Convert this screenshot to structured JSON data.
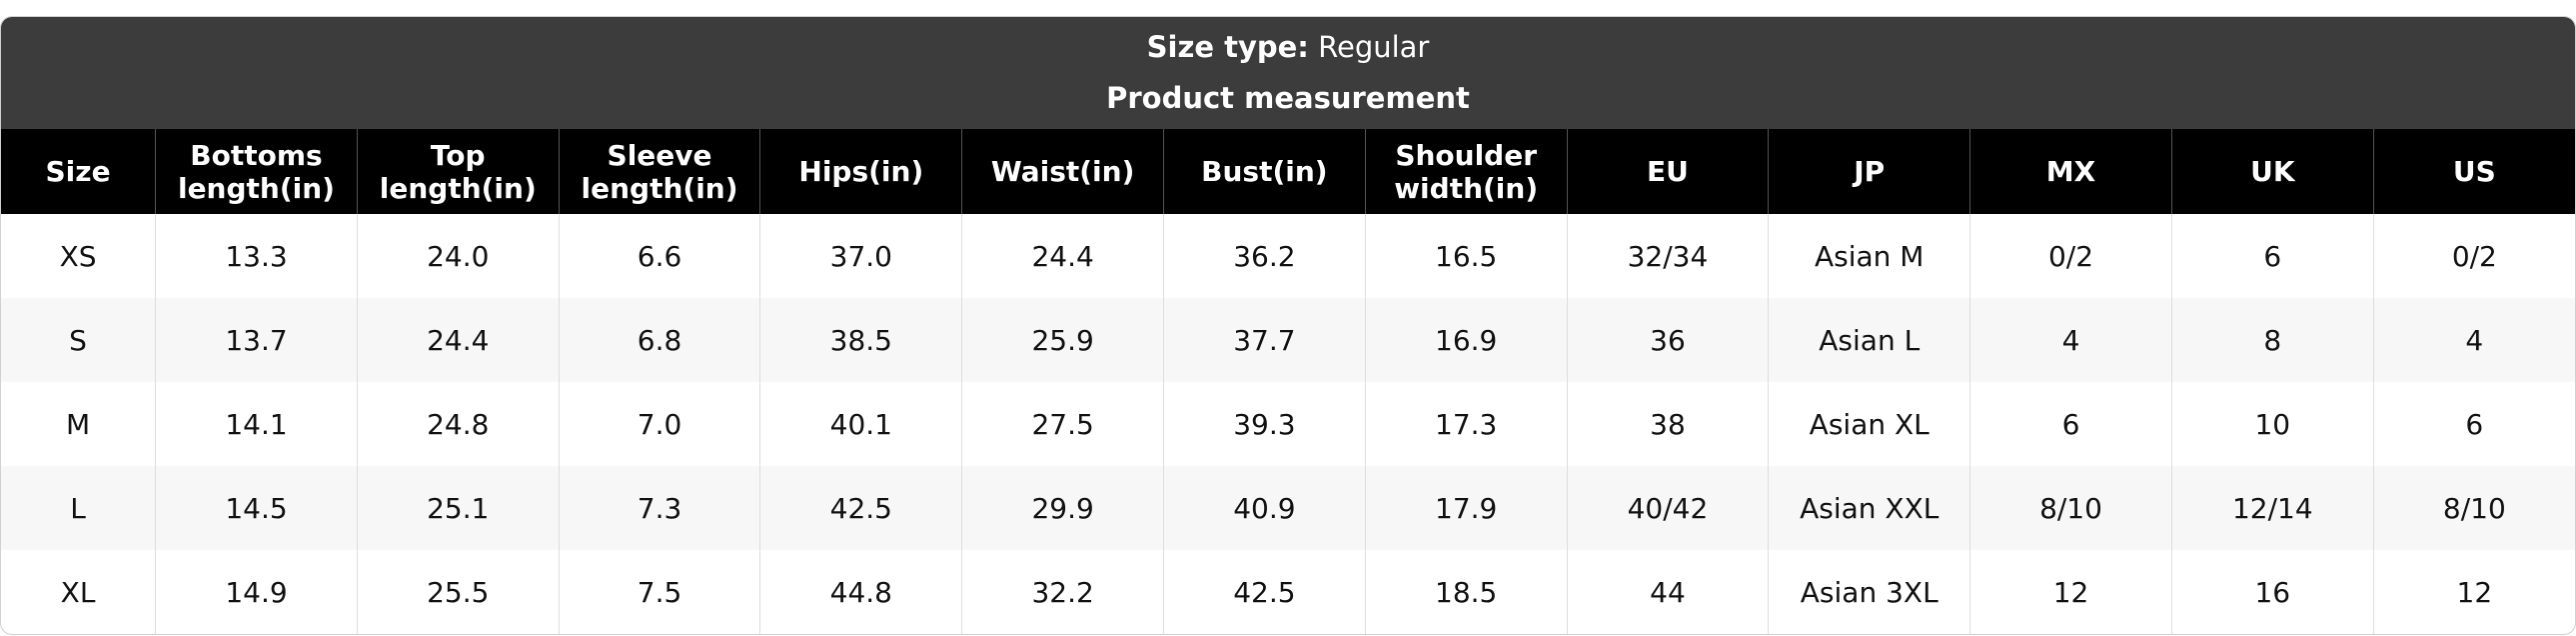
{
  "header": {
    "size_type_label": "Size type:",
    "size_type_value": "Regular",
    "subtitle": "Product measurement"
  },
  "table": {
    "columns": [
      "Size",
      "Bottoms length(in)",
      "Top length(in)",
      "Sleeve length(in)",
      "Hips(in)",
      "Waist(in)",
      "Bust(in)",
      "Shoulder width(in)",
      "EU",
      "JP",
      "MX",
      "UK",
      "US"
    ],
    "rows": [
      [
        "XS",
        "13.3",
        "24.0",
        "6.6",
        "37.0",
        "24.4",
        "36.2",
        "16.5",
        "32/34",
        "Asian M",
        "0/2",
        "6",
        "0/2"
      ],
      [
        "S",
        "13.7",
        "24.4",
        "6.8",
        "38.5",
        "25.9",
        "37.7",
        "16.9",
        "36",
        "Asian L",
        "4",
        "8",
        "4"
      ],
      [
        "M",
        "14.1",
        "24.8",
        "7.0",
        "40.1",
        "27.5",
        "39.3",
        "17.3",
        "38",
        "Asian XL",
        "6",
        "10",
        "6"
      ],
      [
        "L",
        "14.5",
        "25.1",
        "7.3",
        "42.5",
        "29.9",
        "40.9",
        "17.9",
        "40/42",
        "Asian XXL",
        "8/10",
        "12/14",
        "8/10"
      ],
      [
        "XL",
        "14.9",
        "25.5",
        "7.5",
        "44.8",
        "32.2",
        "42.5",
        "18.5",
        "44",
        "Asian 3XL",
        "12",
        "16",
        "12"
      ]
    ]
  }
}
